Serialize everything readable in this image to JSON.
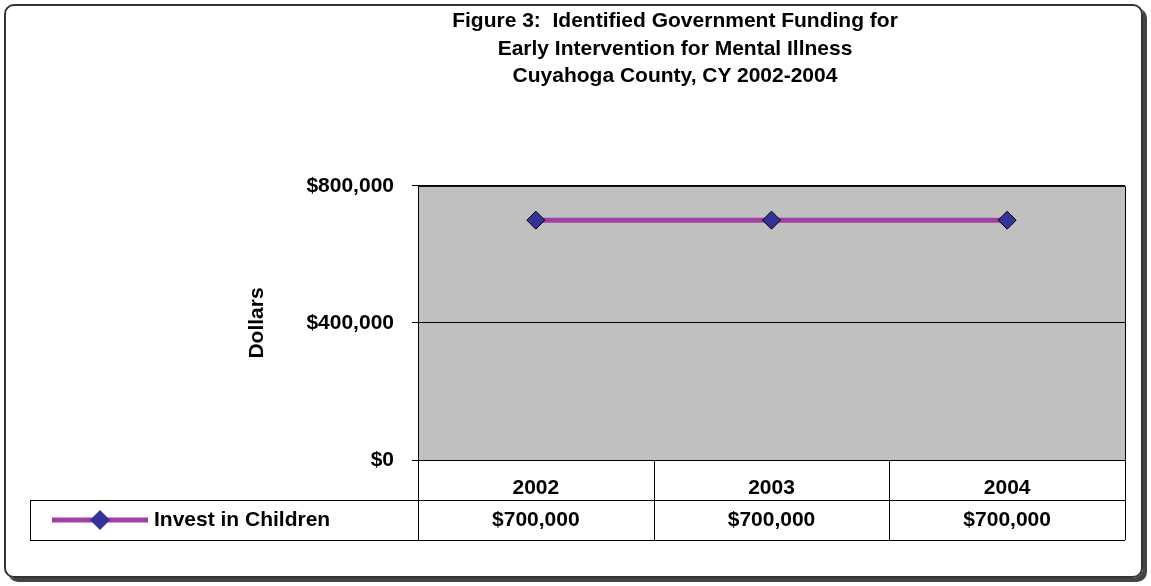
{
  "chart_data": {
    "type": "line",
    "title": "Figure 3:  Identified Government Funding for\nEarly Intervention for Mental Illness\nCuyahoga County, CY 2002-2004",
    "ylabel": "Dollars",
    "categories": [
      "2002",
      "2003",
      "2004"
    ],
    "series": [
      {
        "name": "Invest in Children",
        "color": "#a040a0",
        "values": [
          700000,
          700000,
          700000
        ],
        "value_labels": [
          "$700,000",
          "$700,000",
          "$700,000"
        ]
      }
    ],
    "ylim": [
      0,
      800000
    ],
    "yticks": [
      {
        "value": 0,
        "label": "$0"
      },
      {
        "value": 400000,
        "label": "$400,000"
      },
      {
        "value": 800000,
        "label": "$800,000"
      }
    ],
    "grid": "y",
    "legend": "bottom",
    "marker": "diamond"
  }
}
